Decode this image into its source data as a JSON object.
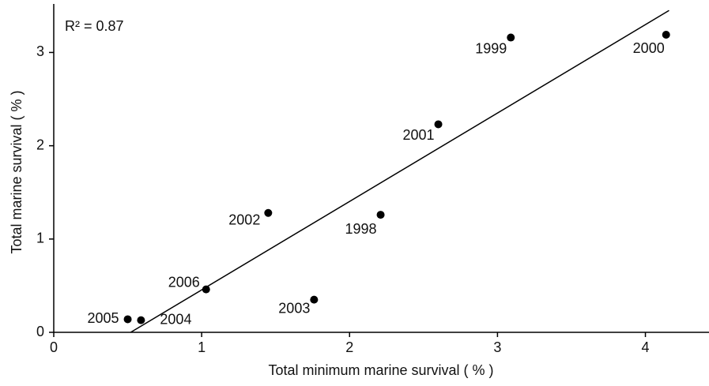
{
  "chart_data": {
    "type": "scatter",
    "x": [
      0.5,
      0.59,
      1.03,
      1.45,
      1.76,
      2.21,
      2.6,
      3.09,
      4.14
    ],
    "values": [
      0.14,
      0.13,
      0.46,
      1.28,
      0.35,
      1.26,
      2.23,
      3.16,
      3.19
    ],
    "labels": [
      "2005",
      "2004",
      "2006",
      "2002",
      "2003",
      "1998",
      "2001",
      "1999",
      "2000"
    ],
    "color": "#000000",
    "fit_line": {
      "x": [
        0.52,
        4.16
      ],
      "y": [
        0,
        3.45
      ]
    },
    "annotation": "R² = 0.87",
    "x_label": "Total minimum marine survival ( % )",
    "y_label": "Total marine survival ( % )",
    "xlim": [
      0,
      4.43
    ],
    "ylim": [
      0,
      3.52
    ],
    "xticks": [
      0,
      1,
      2,
      3,
      4
    ],
    "yticks": [
      0,
      1,
      2,
      3
    ],
    "grid": false
  }
}
